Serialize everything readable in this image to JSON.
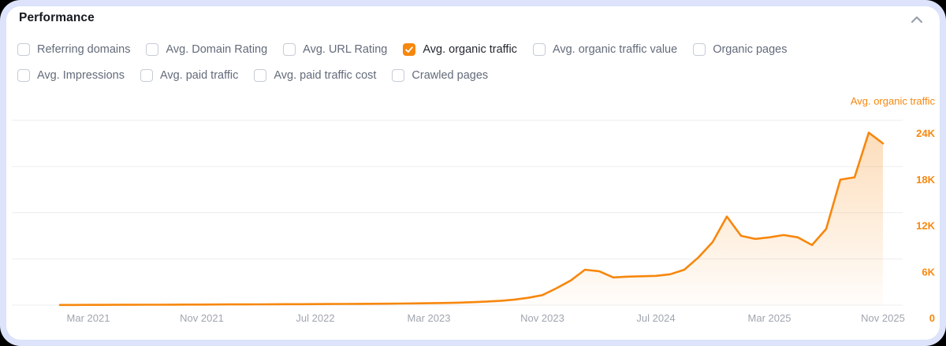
{
  "header": {
    "title": "Performance",
    "collapse_icon": "chevron-up"
  },
  "metric_toggles": {
    "rows": [
      [
        {
          "label": "Referring domains",
          "checked": false
        },
        {
          "label": "Avg. Domain Rating",
          "checked": false
        },
        {
          "label": "Avg. URL Rating",
          "checked": false
        },
        {
          "label": "Avg. organic traffic",
          "checked": true
        },
        {
          "label": "Avg. organic traffic value",
          "checked": false
        },
        {
          "label": "Organic pages",
          "checked": false
        }
      ],
      [
        {
          "label": "Avg. Impressions",
          "checked": false
        },
        {
          "label": "Avg. paid traffic",
          "checked": false
        },
        {
          "label": "Avg. paid traffic cost",
          "checked": false
        },
        {
          "label": "Crawled pages",
          "checked": false
        }
      ]
    ]
  },
  "chart_data": {
    "type": "area",
    "title": "Avg. organic traffic",
    "legend_label": "Avg. organic traffic",
    "unit": "thousands of visitors per month",
    "ylim": [
      0,
      24
    ],
    "grid": true,
    "legend_position": "top-right",
    "y_ticks": [
      {
        "label": "0",
        "value": 0
      },
      {
        "label": "6K",
        "value": 6
      },
      {
        "label": "12K",
        "value": 12
      },
      {
        "label": "18K",
        "value": 18
      },
      {
        "label": "24K",
        "value": 24
      }
    ],
    "x_ticks": [
      {
        "label": "Mar 2021",
        "index": 2
      },
      {
        "label": "Nov 2021",
        "index": 10
      },
      {
        "label": "Jul 2022",
        "index": 18
      },
      {
        "label": "Mar 2023",
        "index": 26
      },
      {
        "label": "Nov 2023",
        "index": 34
      },
      {
        "label": "Jul 2024",
        "index": 42
      },
      {
        "label": "Mar 2025",
        "index": 50
      },
      {
        "label": "Nov 2025",
        "index": 58
      }
    ],
    "months": [
      "Jan 2021",
      "Feb 2021",
      "Mar 2021",
      "Apr 2021",
      "May 2021",
      "Jun 2021",
      "Jul 2021",
      "Aug 2021",
      "Sep 2021",
      "Oct 2021",
      "Nov 2021",
      "Dec 2021",
      "Jan 2022",
      "Feb 2022",
      "Mar 2022",
      "Apr 2022",
      "May 2022",
      "Jun 2022",
      "Jul 2022",
      "Aug 2022",
      "Sep 2022",
      "Oct 2022",
      "Nov 2022",
      "Dec 2022",
      "Jan 2023",
      "Feb 2023",
      "Mar 2023",
      "Apr 2023",
      "May 2023",
      "Jun 2023",
      "Jul 2023",
      "Aug 2023",
      "Sep 2023",
      "Oct 2023",
      "Nov 2023",
      "Dec 2023",
      "Jan 2024",
      "Feb 2024",
      "Mar 2024",
      "Apr 2024",
      "May 2024",
      "Jun 2024",
      "Jul 2024",
      "Aug 2024",
      "Sep 2024",
      "Oct 2024",
      "Nov 2024",
      "Dec 2024",
      "Jan 2025",
      "Feb 2025",
      "Mar 2025",
      "Apr 2025",
      "May 2025",
      "Jun 2025",
      "Jul 2025",
      "Aug 2025",
      "Sep 2025",
      "Oct 2025",
      "Nov 2025"
    ],
    "values_k": [
      0.02,
      0.02,
      0.03,
      0.03,
      0.04,
      0.04,
      0.05,
      0.05,
      0.06,
      0.07,
      0.07,
      0.08,
      0.09,
      0.09,
      0.1,
      0.11,
      0.12,
      0.12,
      0.13,
      0.14,
      0.15,
      0.16,
      0.17,
      0.18,
      0.2,
      0.22,
      0.25,
      0.28,
      0.32,
      0.38,
      0.45,
      0.55,
      0.7,
      0.95,
      1.3,
      2.2,
      3.2,
      4.6,
      4.4,
      3.6,
      3.7,
      3.75,
      3.8,
      4.0,
      4.6,
      6.2,
      8.2,
      11.5,
      9.0,
      8.6,
      8.8,
      9.1,
      8.8,
      7.8,
      9.9,
      16.3,
      16.6,
      22.4,
      21.0
    ]
  },
  "colors": {
    "accent_orange": "#f7870d",
    "frame_lavender": "#dce3fa",
    "card_white": "#ffffff",
    "grid_gray": "#ededef",
    "axis_text_gray": "#a0a5ae",
    "label_gray": "#636b7a",
    "label_dark": "#23272f"
  }
}
